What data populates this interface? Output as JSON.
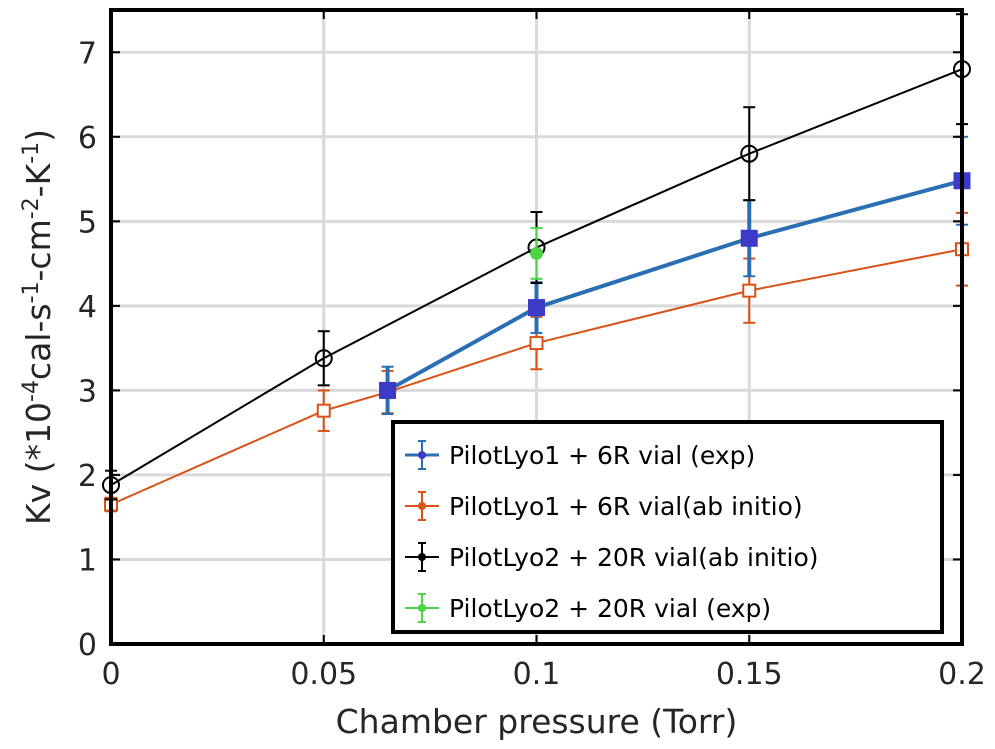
{
  "chart_data": {
    "type": "line",
    "xlabel": "Chamber pressure (Torr)",
    "ylabel": {
      "parts": [
        {
          "text": "Kv (*10",
          "sup": false
        },
        {
          "text": "-4",
          "sup": true
        },
        {
          "text": "cal-s",
          "sup": false
        },
        {
          "text": "-1",
          "sup": true
        },
        {
          "text": "-cm",
          "sup": false
        },
        {
          "text": "-2",
          "sup": true
        },
        {
          "text": "-K",
          "sup": false
        },
        {
          "text": "-1",
          "sup": true
        },
        {
          "text": ")",
          "sup": false
        }
      ]
    },
    "xlim": [
      0,
      0.2
    ],
    "ylim": [
      0,
      7.5
    ],
    "xticks": [
      0,
      0.05,
      0.1,
      0.15,
      0.2
    ],
    "xtick_labels": [
      "0",
      "0.05",
      "0.1",
      "0.15",
      "0.2"
    ],
    "yticks": [
      0,
      1,
      2,
      3,
      4,
      5,
      6,
      7
    ],
    "ytick_labels": [
      "0",
      "1",
      "2",
      "3",
      "4",
      "5",
      "6",
      "7"
    ],
    "grid": true,
    "legend_position": "bottom-right",
    "series": [
      {
        "name": "PilotLyo1 + 6R vial (exp)",
        "color": "#2a6fb3",
        "marker": "filled-square",
        "marker_color": "#3b3bc8",
        "line_width": 4,
        "points": [
          {
            "x": 0.065,
            "y": 3.0,
            "err": 0.28
          },
          {
            "x": 0.1,
            "y": 3.98,
            "err": 0.3
          },
          {
            "x": 0.15,
            "y": 4.8,
            "err": 0.45
          },
          {
            "x": 0.2,
            "y": 5.48,
            "err": 0.52
          }
        ]
      },
      {
        "name": "PilotLyo1 + 6R vial(ab initio)",
        "color": "#d95319",
        "marker": "open-square",
        "marker_color": "#d95319",
        "line_width": 2,
        "points": [
          {
            "x": 0.0,
            "y": 1.65,
            "err": 0.08
          },
          {
            "x": 0.05,
            "y": 2.76,
            "err": 0.24
          },
          {
            "x": 0.065,
            "y": 2.98,
            "err": 0.25
          },
          {
            "x": 0.1,
            "y": 3.56,
            "err": 0.31
          },
          {
            "x": 0.15,
            "y": 4.18,
            "err": 0.38
          },
          {
            "x": 0.2,
            "y": 4.67,
            "err": 0.43
          }
        ]
      },
      {
        "name": "PilotLyo2 + 20R vial(ab initio)",
        "color": "#000000",
        "marker": "open-circle",
        "marker_color": "#000000",
        "line_width": 2,
        "points": [
          {
            "x": 0.0,
            "y": 1.88,
            "err": 0.17
          },
          {
            "x": 0.05,
            "y": 3.38,
            "err": 0.32
          },
          {
            "x": 0.1,
            "y": 4.69,
            "err": 0.42
          },
          {
            "x": 0.15,
            "y": 5.8,
            "err": 0.55
          },
          {
            "x": 0.2,
            "y": 6.8,
            "err": 0.65
          }
        ]
      },
      {
        "name": "PilotLyo2 + 20R vial (exp)",
        "color": "#4dd447",
        "marker": "filled-circle",
        "marker_color": "#4dd447",
        "line_width": 2,
        "points": [
          {
            "x": 0.1,
            "y": 4.62,
            "err": 0.3
          }
        ]
      }
    ]
  }
}
